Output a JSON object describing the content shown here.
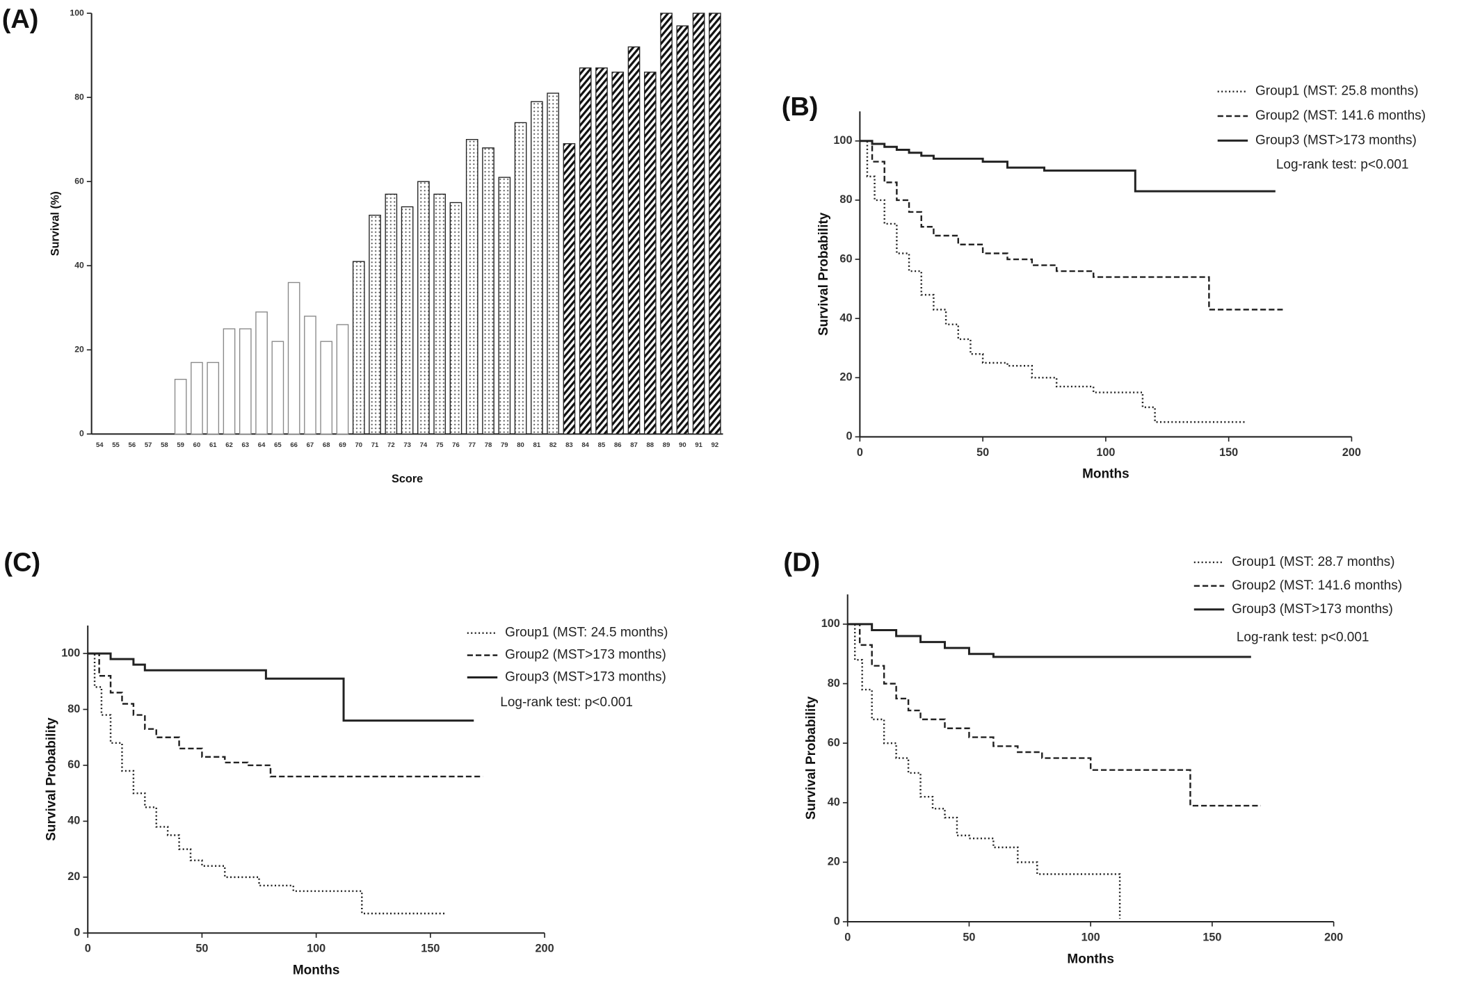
{
  "chart_data": [
    {
      "type": "bar",
      "label": "(A)",
      "x_label": "Score",
      "y_label": "Survival (%)",
      "categories": [
        "54",
        "55",
        "56",
        "57",
        "58",
        "59",
        "60",
        "61",
        "62",
        "63",
        "64",
        "65",
        "66",
        "67",
        "68",
        "69",
        "70",
        "71",
        "72",
        "73",
        "74",
        "75",
        "76",
        "77",
        "78",
        "79",
        "80",
        "81",
        "82",
        "83",
        "84",
        "85",
        "86",
        "87",
        "88",
        "89",
        "90",
        "91",
        "92"
      ],
      "values": [
        0,
        0,
        0,
        0,
        0,
        13,
        17,
        17,
        25,
        25,
        29,
        22,
        36,
        28,
        22,
        26,
        41,
        52,
        57,
        54,
        60,
        57,
        55,
        70,
        68,
        61,
        74,
        79,
        81,
        69,
        87,
        87,
        86,
        92,
        86,
        100,
        97,
        100,
        100
      ],
      "bar_styles": [
        "plain",
        "plain",
        "plain",
        "plain",
        "plain",
        "plain",
        "plain",
        "plain",
        "plain",
        "plain",
        "plain",
        "plain",
        "plain",
        "plain",
        "plain",
        "plain",
        "dotted",
        "dotted",
        "dotted",
        "dotted",
        "dotted",
        "dotted",
        "dotted",
        "dotted",
        "dotted",
        "dotted",
        "dotted",
        "dotted",
        "dotted",
        "hatched",
        "hatched",
        "hatched",
        "hatched",
        "hatched",
        "hatched",
        "hatched",
        "hatched",
        "hatched",
        "hatched"
      ],
      "color": "#222",
      "ylim": [
        0,
        100
      ],
      "yticks": [
        0,
        20,
        40,
        60,
        80,
        100
      ]
    },
    {
      "type": "step",
      "label": "(B)",
      "x_label": "Months",
      "y_label": "Survival Probability",
      "xlim": [
        0,
        200
      ],
      "xticks": [
        0,
        50,
        100,
        150,
        200
      ],
      "ylim": [
        0,
        110
      ],
      "yticks": [
        0,
        20,
        40,
        60,
        80,
        100
      ],
      "annotation": "Log-rank test: p<0.001",
      "series": [
        {
          "name": "Group1 (MST: 25.8 months)",
          "color": "#222",
          "line_style": "dotted",
          "x": [
            0,
            3,
            6,
            10,
            15,
            20,
            25,
            30,
            35,
            40,
            45,
            50,
            60,
            70,
            80,
            95,
            110,
            115,
            120,
            157
          ],
          "values": [
            100,
            88,
            80,
            72,
            62,
            56,
            48,
            43,
            38,
            33,
            28,
            25,
            24,
            20,
            17,
            15,
            15,
            10,
            5,
            5
          ]
        },
        {
          "name": "Group2 (MST: 141.6 months)",
          "color": "#222",
          "line_style": "dashed",
          "x": [
            0,
            5,
            10,
            15,
            20,
            25,
            30,
            40,
            50,
            60,
            70,
            80,
            95,
            110,
            142,
            172
          ],
          "values": [
            100,
            93,
            86,
            80,
            76,
            71,
            68,
            65,
            62,
            60,
            58,
            56,
            54,
            54,
            43,
            43
          ]
        },
        {
          "name": "Group3 (MST>173 months)",
          "color": "#222",
          "line_style": "solid",
          "x": [
            0,
            5,
            10,
            15,
            20,
            25,
            30,
            40,
            50,
            60,
            75,
            112,
            169
          ],
          "values": [
            100,
            99,
            98,
            97,
            96,
            95,
            94,
            94,
            93,
            91,
            90,
            83,
            83
          ]
        }
      ]
    },
    {
      "type": "step",
      "label": "(C)",
      "x_label": "Months",
      "y_label": "Survival Probability",
      "xlim": [
        0,
        200
      ],
      "xticks": [
        0,
        50,
        100,
        150,
        200
      ],
      "ylim": [
        0,
        110
      ],
      "yticks": [
        0,
        20,
        40,
        60,
        80,
        100
      ],
      "annotation": "Log-rank test: p<0.001",
      "series": [
        {
          "name": "Group1 (MST: 24.5 months)",
          "color": "#222",
          "line_style": "dotted",
          "x": [
            0,
            3,
            6,
            10,
            15,
            20,
            25,
            30,
            35,
            40,
            45,
            50,
            60,
            75,
            90,
            110,
            120,
            157
          ],
          "values": [
            100,
            88,
            78,
            68,
            58,
            50,
            45,
            38,
            35,
            30,
            26,
            24,
            20,
            17,
            15,
            15,
            7,
            7
          ]
        },
        {
          "name": "Group2 (MST>173 months)",
          "color": "#222",
          "line_style": "dashed",
          "x": [
            0,
            5,
            10,
            15,
            20,
            25,
            30,
            40,
            50,
            60,
            70,
            80,
            100,
            173
          ],
          "values": [
            100,
            92,
            86,
            82,
            78,
            73,
            70,
            66,
            63,
            61,
            60,
            56,
            56,
            56
          ]
        },
        {
          "name": "Group3 (MST>173 months)",
          "color": "#222",
          "line_style": "solid",
          "x": [
            0,
            10,
            20,
            25,
            78,
            112,
            169
          ],
          "values": [
            100,
            98,
            96,
            94,
            91,
            76,
            76
          ]
        }
      ]
    },
    {
      "type": "step",
      "label": "(D)",
      "x_label": "Months",
      "y_label": "Survival Probability",
      "xlim": [
        0,
        200
      ],
      "xticks": [
        0,
        50,
        100,
        150,
        200
      ],
      "ylim": [
        0,
        110
      ],
      "yticks": [
        0,
        20,
        40,
        60,
        80,
        100
      ],
      "annotation": "Log-rank test: p<0.001",
      "series": [
        {
          "name": "Group1 (MST: 28.7 months)",
          "color": "#222",
          "line_style": "dotted",
          "x": [
            0,
            3,
            6,
            10,
            15,
            20,
            25,
            30,
            35,
            40,
            45,
            50,
            60,
            70,
            78,
            112
          ],
          "values": [
            100,
            88,
            78,
            68,
            60,
            55,
            50,
            42,
            38,
            35,
            29,
            28,
            25,
            20,
            16,
            1
          ]
        },
        {
          "name": "Group2 (MST: 141.6 months)",
          "color": "#222",
          "line_style": "dashed",
          "x": [
            0,
            5,
            10,
            15,
            20,
            25,
            30,
            40,
            50,
            60,
            70,
            80,
            100,
            141,
            170
          ],
          "values": [
            100,
            93,
            86,
            80,
            75,
            71,
            68,
            65,
            62,
            59,
            57,
            55,
            51,
            39,
            39
          ]
        },
        {
          "name": "Group3 (MST>173 months)",
          "color": "#222",
          "line_style": "solid",
          "x": [
            0,
            10,
            20,
            30,
            40,
            50,
            60,
            166
          ],
          "values": [
            100,
            98,
            96,
            94,
            92,
            90,
            89,
            89
          ]
        }
      ]
    }
  ]
}
